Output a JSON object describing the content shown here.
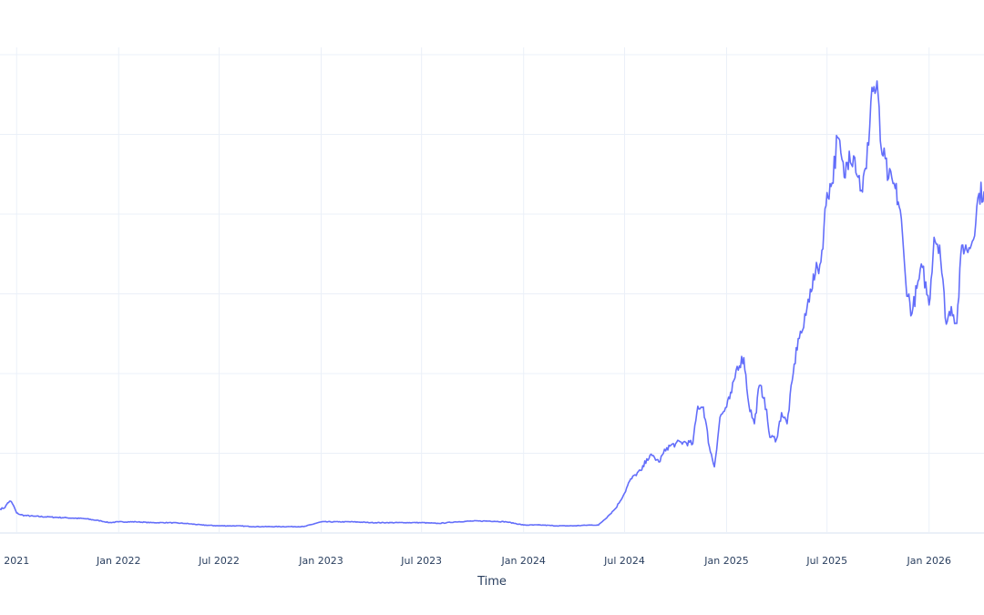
{
  "chart_data": {
    "type": "line",
    "xlabel": "Time",
    "ylabel": "",
    "x_tick_labels": [
      "2021",
      "Jan 2022",
      "Jul 2022",
      "Jan 2023",
      "Jul 2023",
      "Jan 2024",
      "Jul 2024",
      "Jan 2025",
      "Jul 2025",
      "Jan 2026"
    ],
    "x_ticks": [
      "2021-07-01",
      "2022-01-01",
      "2022-07-01",
      "2023-01-01",
      "2023-07-01",
      "2024-01-01",
      "2024-07-01",
      "2025-01-01",
      "2025-07-01",
      "2026-01-01"
    ],
    "xlim": [
      "2021-06-01",
      "2026-04-10"
    ],
    "ylim": [
      0,
      6
    ],
    "y_gridlines": [
      0,
      1,
      2,
      3,
      4,
      5,
      6
    ],
    "grid": true,
    "color": "#636efa",
    "series": [
      {
        "x": [
          "2021-06-01",
          "2021-06-10",
          "2021-06-15",
          "2021-06-20",
          "2021-06-25",
          "2021-07-01",
          "2021-07-08",
          "2021-07-15",
          "2021-08-01",
          "2021-09-01",
          "2021-10-01",
          "2021-11-01",
          "2021-12-01",
          "2021-12-15",
          "2022-01-01",
          "2022-02-01",
          "2022-03-01",
          "2022-04-01",
          "2022-05-01",
          "2022-06-01",
          "2022-07-01",
          "2022-08-01",
          "2022-09-01",
          "2022-10-01",
          "2022-11-01",
          "2022-12-01",
          "2023-01-01",
          "2023-02-01",
          "2023-03-01",
          "2023-04-01",
          "2023-05-01",
          "2023-06-01",
          "2023-07-01",
          "2023-08-01",
          "2023-09-01",
          "2023-10-01",
          "2023-11-01",
          "2023-12-01",
          "2024-01-01",
          "2024-02-01",
          "2024-03-01",
          "2024-04-01",
          "2024-05-01",
          "2024-05-15",
          "2024-06-01",
          "2024-06-15",
          "2024-07-01",
          "2024-07-10",
          "2024-07-20",
          "2024-08-01",
          "2024-08-10",
          "2024-08-20",
          "2024-09-01",
          "2024-09-15",
          "2024-10-01",
          "2024-10-15",
          "2024-11-01",
          "2024-11-10",
          "2024-11-20",
          "2024-12-01",
          "2024-12-10",
          "2024-12-20",
          "2025-01-01",
          "2025-01-10",
          "2025-01-20",
          "2025-02-01",
          "2025-02-10",
          "2025-02-20",
          "2025-03-01",
          "2025-03-10",
          "2025-03-20",
          "2025-04-01",
          "2025-04-10",
          "2025-04-20",
          "2025-05-01",
          "2025-05-10",
          "2025-05-20",
          "2025-06-01",
          "2025-06-10",
          "2025-06-20",
          "2025-07-01",
          "2025-07-10",
          "2025-07-20",
          "2025-08-01",
          "2025-08-10",
          "2025-08-20",
          "2025-09-01",
          "2025-09-10",
          "2025-09-20",
          "2025-10-01",
          "2025-10-05",
          "2025-10-10",
          "2025-10-20",
          "2025-11-01",
          "2025-11-10",
          "2025-11-20",
          "2025-12-01",
          "2025-12-10",
          "2025-12-20",
          "2026-01-01",
          "2026-01-10",
          "2026-01-20",
          "2026-02-01",
          "2026-02-10",
          "2026-02-20",
          "2026-03-01",
          "2026-03-10",
          "2026-03-20",
          "2026-04-01",
          "2026-04-10"
        ],
        "y": [
          0.3,
          0.32,
          0.38,
          0.4,
          0.35,
          0.25,
          0.23,
          0.22,
          0.21,
          0.2,
          0.19,
          0.18,
          0.15,
          0.13,
          0.14,
          0.14,
          0.13,
          0.13,
          0.12,
          0.1,
          0.09,
          0.09,
          0.08,
          0.08,
          0.08,
          0.08,
          0.14,
          0.14,
          0.14,
          0.13,
          0.13,
          0.13,
          0.13,
          0.12,
          0.14,
          0.15,
          0.15,
          0.14,
          0.1,
          0.1,
          0.09,
          0.09,
          0.1,
          0.1,
          0.21,
          0.31,
          0.5,
          0.65,
          0.73,
          0.79,
          0.93,
          0.97,
          0.89,
          1.07,
          1.12,
          1.14,
          1.12,
          1.59,
          1.58,
          1.08,
          0.83,
          1.45,
          1.58,
          1.76,
          2.09,
          2.2,
          1.61,
          1.37,
          1.85,
          1.7,
          1.2,
          1.18,
          1.51,
          1.37,
          2.0,
          2.44,
          2.58,
          3.06,
          3.25,
          3.4,
          4.27,
          4.39,
          4.96,
          4.46,
          4.79,
          4.71,
          4.3,
          4.57,
          5.59,
          5.51,
          4.92,
          4.73,
          4.45,
          4.32,
          4.05,
          3.14,
          2.75,
          3.07,
          3.33,
          2.86,
          3.71,
          3.61,
          2.62,
          2.84,
          2.63,
          3.61,
          3.55,
          3.66,
          4.26,
          4.28
        ]
      }
    ]
  }
}
